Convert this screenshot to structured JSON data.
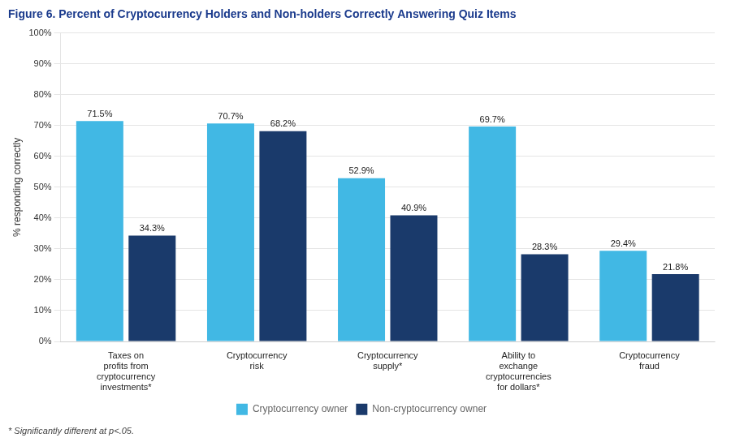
{
  "chart_data": {
    "type": "bar",
    "title": "Figure 6. Percent of Cryptocurrency Holders and Non-holders Correctly Answering Quiz Items",
    "categories": [
      "Taxes on\nprofits from\ncryptocurrency\ninvestments*",
      "Cryptocurrency\nrisk",
      "Cryptocurrency\nsupply*",
      "Ability to\nexchange\ncryptocurrencies\nfor dollars*",
      "Cryptocurrency\nfraud"
    ],
    "series": [
      {
        "name": "Cryptocurrency owner",
        "color": "#41B8E4",
        "values": [
          71.5,
          70.7,
          52.9,
          69.7,
          29.4
        ],
        "value_labels": [
          "71.5%",
          "70.7%",
          "52.9%",
          "69.7%",
          "29.4%"
        ]
      },
      {
        "name": "Non-cryptocurrency owner",
        "color": "#1A3A6B",
        "values": [
          34.3,
          68.2,
          40.9,
          28.3,
          21.8
        ],
        "value_labels": [
          "34.3%",
          "68.2%",
          "40.9%",
          "28.3%",
          "21.8%"
        ]
      }
    ],
    "y_label": "% responding correctly",
    "ylim": [
      0,
      100
    ],
    "yticks": [
      {
        "value": 0,
        "label": "0%"
      },
      {
        "value": 10,
        "label": "10%"
      },
      {
        "value": 20,
        "label": "20%"
      },
      {
        "value": 30,
        "label": "30%"
      },
      {
        "value": 40,
        "label": "40%"
      },
      {
        "value": 50,
        "label": "50%"
      },
      {
        "value": 60,
        "label": "60%"
      },
      {
        "value": 70,
        "label": "70%"
      },
      {
        "value": 80,
        "label": "80%"
      },
      {
        "value": 90,
        "label": "90%"
      },
      {
        "value": 100,
        "label": "100%"
      }
    ],
    "grid": true,
    "legend": "bottom",
    "data_labels": true,
    "annotations": [
      "* Significantly different at p<.05."
    ]
  }
}
